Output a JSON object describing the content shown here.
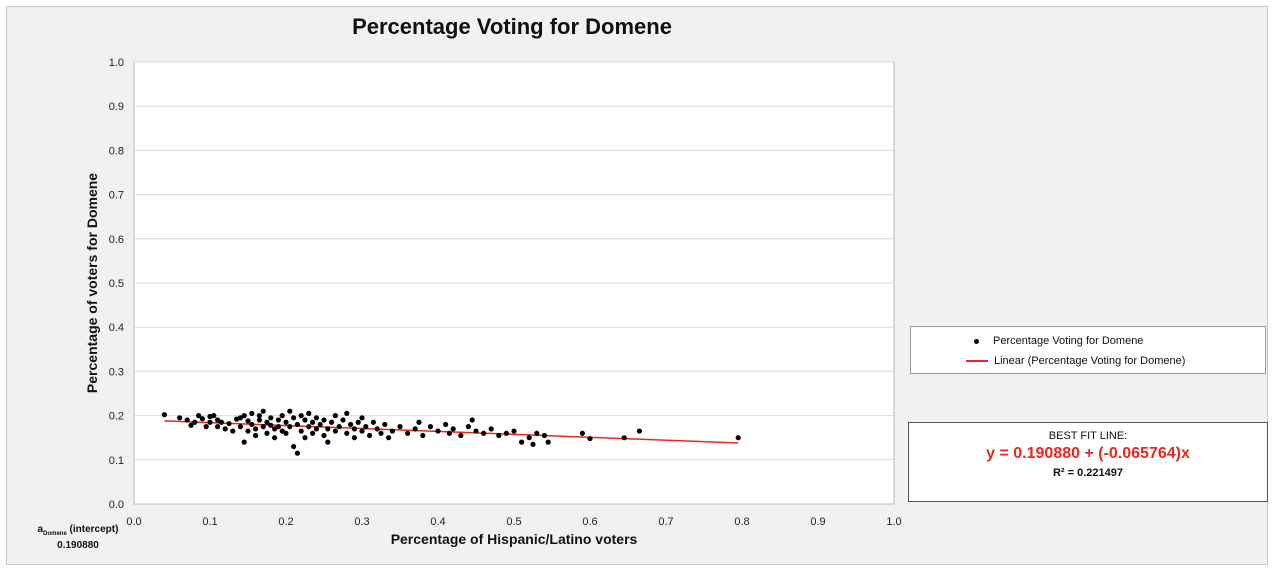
{
  "chart_data": {
    "type": "scatter",
    "title": "Percentage Voting for Domene",
    "xlabel": "Percentage of Hispanic/Latino voters",
    "ylabel": "Percentage of voters for Domene",
    "xlim": [
      0,
      1
    ],
    "ylim": [
      0,
      1
    ],
    "x_ticks": [
      "0.0",
      "0.1",
      "0.2",
      "0.3",
      "0.4",
      "0.5",
      "0.6",
      "0.7",
      "0.8",
      "0.9",
      "1.0"
    ],
    "y_ticks": [
      "0.0",
      "0.1",
      "0.2",
      "0.3",
      "0.4",
      "0.5",
      "0.6",
      "0.7",
      "0.8",
      "0.9",
      "1.0"
    ],
    "grid": "horizontal",
    "legend_position": "right",
    "colors": {
      "points": "#000000",
      "trendline": "#e8281e"
    },
    "series": [
      {
        "name": "Percentage Voting for Domene",
        "points": [
          [
            0.04,
            0.202
          ],
          [
            0.06,
            0.195
          ],
          [
            0.07,
            0.19
          ],
          [
            0.075,
            0.178
          ],
          [
            0.08,
            0.185
          ],
          [
            0.085,
            0.2
          ],
          [
            0.09,
            0.193
          ],
          [
            0.095,
            0.175
          ],
          [
            0.1,
            0.198
          ],
          [
            0.1,
            0.185
          ],
          [
            0.105,
            0.2
          ],
          [
            0.11,
            0.19
          ],
          [
            0.11,
            0.175
          ],
          [
            0.115,
            0.185
          ],
          [
            0.12,
            0.17
          ],
          [
            0.125,
            0.182
          ],
          [
            0.13,
            0.165
          ],
          [
            0.135,
            0.192
          ],
          [
            0.14,
            0.195
          ],
          [
            0.14,
            0.175
          ],
          [
            0.145,
            0.2
          ],
          [
            0.145,
            0.14
          ],
          [
            0.15,
            0.188
          ],
          [
            0.15,
            0.165
          ],
          [
            0.155,
            0.18
          ],
          [
            0.155,
            0.205
          ],
          [
            0.16,
            0.17
          ],
          [
            0.16,
            0.155
          ],
          [
            0.165,
            0.19
          ],
          [
            0.165,
            0.2
          ],
          [
            0.17,
            0.175
          ],
          [
            0.17,
            0.21
          ],
          [
            0.175,
            0.185
          ],
          [
            0.175,
            0.16
          ],
          [
            0.18,
            0.178
          ],
          [
            0.18,
            0.195
          ],
          [
            0.185,
            0.17
          ],
          [
            0.185,
            0.15
          ],
          [
            0.19,
            0.19
          ],
          [
            0.19,
            0.175
          ],
          [
            0.195,
            0.165
          ],
          [
            0.195,
            0.2
          ],
          [
            0.2,
            0.185
          ],
          [
            0.2,
            0.16
          ],
          [
            0.205,
            0.21
          ],
          [
            0.205,
            0.175
          ],
          [
            0.21,
            0.195
          ],
          [
            0.21,
            0.13
          ],
          [
            0.215,
            0.115
          ],
          [
            0.215,
            0.18
          ],
          [
            0.22,
            0.2
          ],
          [
            0.22,
            0.165
          ],
          [
            0.225,
            0.19
          ],
          [
            0.225,
            0.15
          ],
          [
            0.23,
            0.175
          ],
          [
            0.23,
            0.205
          ],
          [
            0.235,
            0.16
          ],
          [
            0.235,
            0.185
          ],
          [
            0.24,
            0.17
          ],
          [
            0.24,
            0.195
          ],
          [
            0.245,
            0.18
          ],
          [
            0.25,
            0.155
          ],
          [
            0.25,
            0.19
          ],
          [
            0.255,
            0.17
          ],
          [
            0.255,
            0.14
          ],
          [
            0.26,
            0.185
          ],
          [
            0.265,
            0.2
          ],
          [
            0.265,
            0.165
          ],
          [
            0.27,
            0.175
          ],
          [
            0.275,
            0.19
          ],
          [
            0.28,
            0.16
          ],
          [
            0.28,
            0.205
          ],
          [
            0.285,
            0.18
          ],
          [
            0.29,
            0.17
          ],
          [
            0.29,
            0.15
          ],
          [
            0.295,
            0.185
          ],
          [
            0.3,
            0.165
          ],
          [
            0.3,
            0.195
          ],
          [
            0.305,
            0.175
          ],
          [
            0.31,
            0.155
          ],
          [
            0.315,
            0.185
          ],
          [
            0.32,
            0.17
          ],
          [
            0.325,
            0.16
          ],
          [
            0.33,
            0.18
          ],
          [
            0.335,
            0.15
          ],
          [
            0.34,
            0.165
          ],
          [
            0.35,
            0.175
          ],
          [
            0.36,
            0.16
          ],
          [
            0.37,
            0.17
          ],
          [
            0.375,
            0.185
          ],
          [
            0.38,
            0.155
          ],
          [
            0.39,
            0.175
          ],
          [
            0.4,
            0.165
          ],
          [
            0.41,
            0.18
          ],
          [
            0.415,
            0.16
          ],
          [
            0.42,
            0.17
          ],
          [
            0.43,
            0.155
          ],
          [
            0.44,
            0.175
          ],
          [
            0.445,
            0.19
          ],
          [
            0.45,
            0.165
          ],
          [
            0.46,
            0.16
          ],
          [
            0.47,
            0.17
          ],
          [
            0.48,
            0.155
          ],
          [
            0.49,
            0.16
          ],
          [
            0.5,
            0.165
          ],
          [
            0.51,
            0.14
          ],
          [
            0.52,
            0.15
          ],
          [
            0.525,
            0.135
          ],
          [
            0.53,
            0.16
          ],
          [
            0.54,
            0.155
          ],
          [
            0.545,
            0.14
          ],
          [
            0.59,
            0.16
          ],
          [
            0.6,
            0.148
          ],
          [
            0.645,
            0.15
          ],
          [
            0.665,
            0.165
          ],
          [
            0.795,
            0.15
          ]
        ]
      },
      {
        "name": "Linear (Percentage Voting for Domene)",
        "x": [
          0.04,
          0.795
        ],
        "y": [
          0.188,
          0.138
        ]
      }
    ],
    "best_fit": {
      "heading": "BEST FIT LINE:",
      "equation": "y = 0.190880 + (-0.065764)x",
      "r2_label": "R² = 0.221497",
      "intercept": 0.19088,
      "slope": -0.065764
    },
    "intercept_note": {
      "label_prefix": "a",
      "label_sub": "Domene",
      "label_suffix": " (intercept)",
      "value": "0.190880"
    }
  }
}
